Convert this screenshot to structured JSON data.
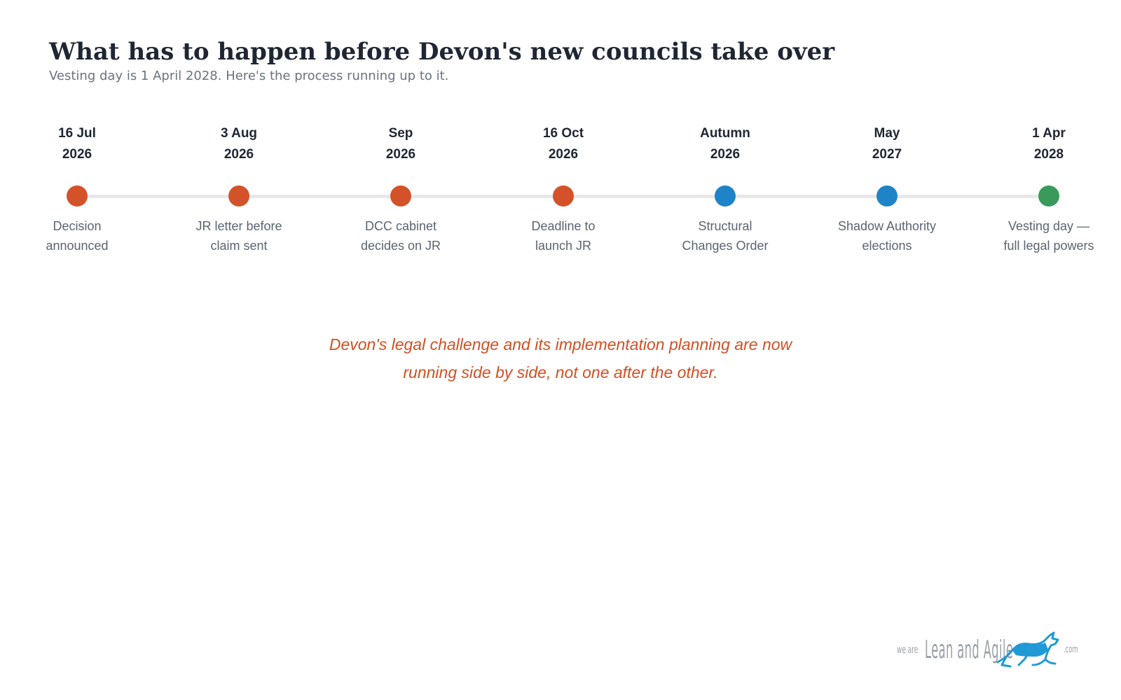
{
  "header": {
    "title": "What has to happen before Devon's new councils take over",
    "subtitle": "Vesting day is 1 April 2028. Here's the process running up to it."
  },
  "timeline": {
    "colors": {
      "track": "#e8e8e8",
      "orange": "#d4522a",
      "blue": "#1f83c7",
      "green": "#3a9a5b"
    },
    "milestones": [
      {
        "date": "16 Jul\n2026",
        "label": "Decision\nannounced",
        "color": "#d4522a"
      },
      {
        "date": "3 Aug\n2026",
        "label": "JR letter before\nclaim sent",
        "color": "#d4522a"
      },
      {
        "date": "Sep\n2026",
        "label": "DCC cabinet\ndecides on JR",
        "color": "#d4522a"
      },
      {
        "date": "16 Oct\n2026",
        "label": "Deadline to\nlaunch JR",
        "color": "#d4522a"
      },
      {
        "date": "Autumn\n2026",
        "label": "Structural\nChanges Order",
        "color": "#1f83c7"
      },
      {
        "date": "May\n2027",
        "label": "Shadow Authority\nelections",
        "color": "#1f83c7"
      },
      {
        "date": "1 Apr\n2028",
        "label": "Vesting day —\nfull legal powers",
        "color": "#3a9a5b"
      }
    ]
  },
  "note": "Devon's legal challenge and its implementation planning are now\nrunning side by side, not one after the other.",
  "logo": {
    "prefix": "we are",
    "name": "Lean and Agile",
    "suffix": ".com",
    "icon": "greyhound-icon",
    "color": "#1f9ad6"
  }
}
